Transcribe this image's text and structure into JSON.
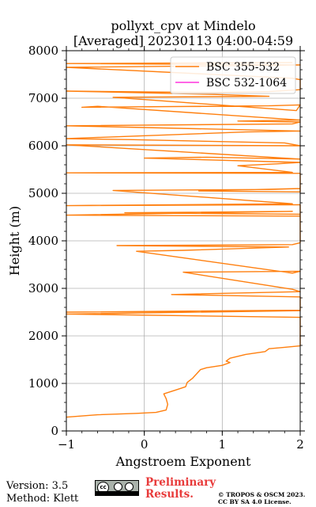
{
  "chart_data": {
    "type": "line",
    "title_line1": "pollyxt_cpv at Mindelo",
    "title_line2": "[Averaged] 20230113 04:00-04:59",
    "xlabel": "Angstroem Exponent",
    "ylabel": "Height (m)",
    "xlim": [
      -1,
      2
    ],
    "ylim": [
      0,
      8000
    ],
    "x_ticks": [
      "−1",
      "0",
      "1",
      "2"
    ],
    "x_tick_values": [
      -1,
      0,
      1,
      2
    ],
    "y_ticks": [
      "0",
      "1000",
      "2000",
      "3000",
      "4000",
      "5000",
      "6000",
      "7000",
      "8000"
    ],
    "y_tick_values": [
      0,
      1000,
      2000,
      3000,
      4000,
      5000,
      6000,
      7000,
      8000
    ],
    "grid": true,
    "legend_placement": "top-right",
    "series": [
      {
        "name": "BSC 355-532",
        "color": "#ff7f0e",
        "points": [
          [
            -1.0,
            290
          ],
          [
            -0.6,
            340
          ],
          [
            -0.1,
            370
          ],
          [
            0.15,
            390
          ],
          [
            0.28,
            440
          ],
          [
            0.3,
            560
          ],
          [
            0.28,
            680
          ],
          [
            0.25,
            780
          ],
          [
            0.4,
            860
          ],
          [
            0.53,
            930
          ],
          [
            0.55,
            1020
          ],
          [
            0.62,
            1110
          ],
          [
            0.67,
            1200
          ],
          [
            0.72,
            1290
          ],
          [
            0.8,
            1330
          ],
          [
            1.0,
            1380
          ],
          [
            1.1,
            1440
          ],
          [
            1.05,
            1470
          ],
          [
            1.1,
            1530
          ],
          [
            1.3,
            1610
          ],
          [
            1.55,
            1670
          ],
          [
            1.6,
            1730
          ],
          [
            1.8,
            1760
          ],
          [
            2.0,
            1790
          ],
          [
            2.0,
            2390
          ],
          [
            -1.0,
            2460
          ],
          [
            2.0,
            2530
          ],
          [
            -1.0,
            2500
          ],
          [
            2.0,
            2540
          ],
          [
            2.0,
            2820
          ],
          [
            0.35,
            2870
          ],
          [
            2.0,
            2930
          ],
          [
            1.9,
            2980
          ],
          [
            0.5,
            3340
          ],
          [
            2.0,
            3360
          ],
          [
            1.9,
            3320
          ],
          [
            -0.1,
            3780
          ],
          [
            0.5,
            3800
          ],
          [
            1.85,
            3870
          ],
          [
            -0.35,
            3900
          ],
          [
            1.9,
            3920
          ],
          [
            2.0,
            3960
          ],
          [
            2.0,
            4560
          ],
          [
            -0.25,
            4590
          ],
          [
            1.9,
            4620
          ],
          [
            -1.0,
            4540
          ],
          [
            2.0,
            4520
          ],
          [
            2.0,
            4760
          ],
          [
            -1.0,
            4740
          ],
          [
            1.9,
            4780
          ],
          [
            -0.4,
            5060
          ],
          [
            1.6,
            5080
          ],
          [
            2.0,
            5100
          ],
          [
            0.7,
            5050
          ],
          [
            2.0,
            5030
          ],
          [
            2.0,
            5420
          ],
          [
            -1.0,
            5430
          ],
          [
            1.9,
            5440
          ],
          [
            1.2,
            5580
          ],
          [
            1.7,
            5620
          ],
          [
            2.0,
            5650
          ],
          [
            0.0,
            5740
          ],
          [
            0.8,
            5760
          ],
          [
            2.0,
            5720
          ],
          [
            -1.0,
            6020
          ],
          [
            2.0,
            6000
          ],
          [
            1.8,
            6060
          ],
          [
            -0.2,
            6130
          ],
          [
            -1.0,
            6150
          ],
          [
            1.3,
            6290
          ],
          [
            2.0,
            6310
          ],
          [
            -1.0,
            6420
          ],
          [
            1.9,
            6460
          ],
          [
            2.0,
            6500
          ],
          [
            1.2,
            6520
          ],
          [
            2.0,
            6540
          ],
          [
            -0.6,
            6830
          ],
          [
            -0.8,
            6810
          ],
          [
            1.6,
            6840
          ],
          [
            2.0,
            6860
          ],
          [
            1.95,
            6740
          ],
          [
            -0.4,
            7020
          ],
          [
            1.6,
            7040
          ],
          [
            0.9,
            7080
          ],
          [
            -1.0,
            7150
          ],
          [
            0.9,
            7120
          ],
          [
            1.6,
            7140
          ],
          [
            2.0,
            7180
          ],
          [
            2.0,
            7390
          ],
          [
            1.9,
            7420
          ],
          [
            -1.0,
            7650
          ],
          [
            2.0,
            7700
          ],
          [
            -1.0,
            7730
          ],
          [
            1.9,
            7750
          ]
        ]
      },
      {
        "name": "BSC 532-1064",
        "color": "#ff33dd",
        "points": []
      }
    ]
  },
  "footer": {
    "version": "Version: 3.5",
    "method": "Method: Klett",
    "preliminary_line1": "Preliminary",
    "preliminary_line2": "Results.",
    "license_line1": "© TROPOS & OSCM 2023.",
    "license_line2": "CC BY SA 4.0 License.",
    "badge_cc": "cc",
    "badge_text": "BY SA"
  }
}
